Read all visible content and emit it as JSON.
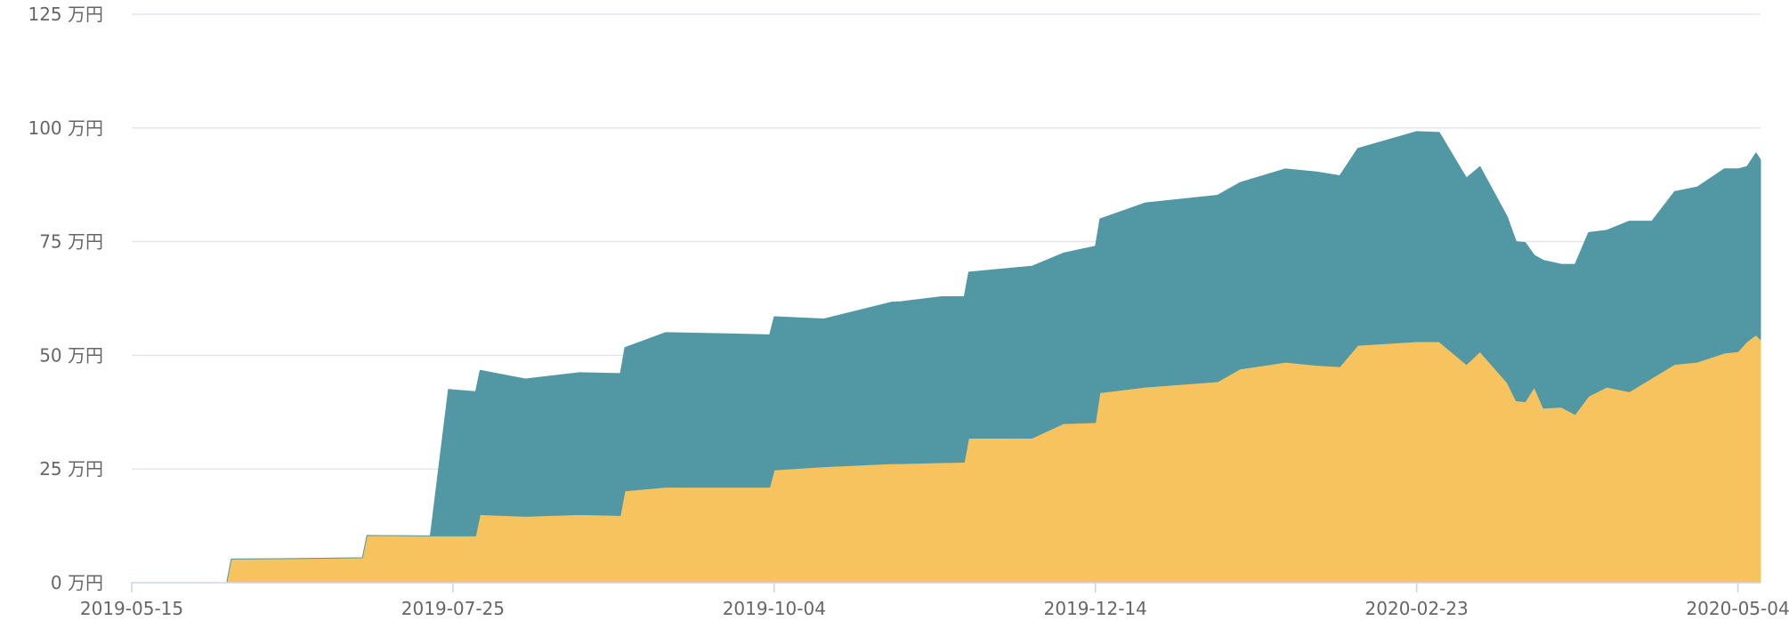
{
  "chart_data": {
    "type": "area",
    "stacked": true,
    "grid": true,
    "legend": "none",
    "xlim": [
      "2019-05-15",
      "2020-05-09"
    ],
    "ylim": [
      0,
      125
    ],
    "y_unit": "万円",
    "y_ticks": [
      {
        "value": 0,
        "label": "0 万円"
      },
      {
        "value": 25,
        "label": "25 万円"
      },
      {
        "value": 50,
        "label": "50 万円"
      },
      {
        "value": 75,
        "label": "75 万円"
      },
      {
        "value": 100,
        "label": "100 万円"
      },
      {
        "value": 125,
        "label": "125 万円"
      }
    ],
    "x_ticks": [
      {
        "value": "2019-05-15",
        "label": "2019-05-15"
      },
      {
        "value": "2019-07-25",
        "label": "2019-07-25"
      },
      {
        "value": "2019-10-04",
        "label": "2019-10-04"
      },
      {
        "value": "2019-12-14",
        "label": "2019-12-14"
      },
      {
        "value": "2020-02-23",
        "label": "2020-02-23"
      },
      {
        "value": "2020-05-04",
        "label": "2020-05-04"
      }
    ],
    "series": [
      {
        "color": "#f6c35f",
        "points": [
          [
            "2019-05-15",
            0
          ],
          [
            "2019-06-05",
            0
          ],
          [
            "2019-06-06",
            5.2
          ],
          [
            "2019-06-20",
            5.3
          ],
          [
            "2019-07-05",
            5.5
          ],
          [
            "2019-07-06",
            10.4
          ],
          [
            "2019-07-20",
            10.3
          ],
          [
            "2019-07-24",
            10.3
          ],
          [
            "2019-07-30",
            10.3
          ],
          [
            "2019-07-31",
            15.0
          ],
          [
            "2019-08-10",
            14.6
          ],
          [
            "2019-08-22",
            15.0
          ],
          [
            "2019-08-31",
            14.8
          ],
          [
            "2019-09-01",
            20.2
          ],
          [
            "2019-09-10",
            21.0
          ],
          [
            "2019-09-25",
            21.0
          ],
          [
            "2019-10-03",
            21.0
          ],
          [
            "2019-10-04",
            24.8
          ],
          [
            "2019-10-15",
            25.5
          ],
          [
            "2019-10-30",
            26.2
          ],
          [
            "2019-11-01",
            26.2
          ],
          [
            "2019-11-10",
            26.4
          ],
          [
            "2019-11-15",
            26.5
          ],
          [
            "2019-11-16",
            31.8
          ],
          [
            "2019-11-30",
            31.8
          ],
          [
            "2019-12-07",
            35.0
          ],
          [
            "2019-12-14",
            35.2
          ],
          [
            "2019-12-15",
            41.8
          ],
          [
            "2019-12-25",
            43.0
          ],
          [
            "2020-01-10",
            44.2
          ],
          [
            "2020-01-15",
            47.0
          ],
          [
            "2020-01-25",
            48.5
          ],
          [
            "2020-02-01",
            47.8
          ],
          [
            "2020-02-06",
            47.5
          ],
          [
            "2020-02-10",
            52.2
          ],
          [
            "2020-02-23",
            53.0
          ],
          [
            "2020-02-28",
            53.0
          ],
          [
            "2020-03-05",
            48.0
          ],
          [
            "2020-03-08",
            50.8
          ],
          [
            "2020-03-14",
            44.0
          ],
          [
            "2020-03-16",
            40.0
          ],
          [
            "2020-03-18",
            39.8
          ],
          [
            "2020-03-20",
            43.0
          ],
          [
            "2020-03-22",
            38.4
          ],
          [
            "2020-03-26",
            38.6
          ],
          [
            "2020-03-29",
            37.0
          ],
          [
            "2020-04-01",
            41.0
          ],
          [
            "2020-04-05",
            43.0
          ],
          [
            "2020-04-10",
            42.0
          ],
          [
            "2020-04-15",
            45.0
          ],
          [
            "2020-04-20",
            48.0
          ],
          [
            "2020-04-25",
            48.5
          ],
          [
            "2020-05-01",
            50.5
          ],
          [
            "2020-05-04",
            50.8
          ],
          [
            "2020-05-06",
            53.0
          ],
          [
            "2020-05-08",
            54.5
          ],
          [
            "2020-05-09",
            53.5
          ]
        ]
      },
      {
        "color": "#5198a4",
        "points": [
          [
            "2019-05-15",
            0
          ],
          [
            "2019-06-05",
            0
          ],
          [
            "2019-06-06",
            0
          ],
          [
            "2019-06-20",
            0
          ],
          [
            "2019-07-05",
            0
          ],
          [
            "2019-07-06",
            0
          ],
          [
            "2019-07-20",
            0
          ],
          [
            "2019-07-24",
            32.2
          ],
          [
            "2019-07-30",
            31.7
          ],
          [
            "2019-07-31",
            31.7
          ],
          [
            "2019-08-10",
            30.2
          ],
          [
            "2019-08-22",
            31.2
          ],
          [
            "2019-08-31",
            31.2
          ],
          [
            "2019-09-01",
            31.5
          ],
          [
            "2019-09-10",
            34.0
          ],
          [
            "2019-09-25",
            33.7
          ],
          [
            "2019-10-03",
            33.5
          ],
          [
            "2019-10-04",
            33.7
          ],
          [
            "2019-10-15",
            32.5
          ],
          [
            "2019-10-30",
            35.5
          ],
          [
            "2019-11-01",
            35.6
          ],
          [
            "2019-11-10",
            36.5
          ],
          [
            "2019-11-15",
            36.4
          ],
          [
            "2019-11-16",
            36.5
          ],
          [
            "2019-11-30",
            37.8
          ],
          [
            "2019-12-07",
            37.5
          ],
          [
            "2019-12-14",
            38.8
          ],
          [
            "2019-12-15",
            38.2
          ],
          [
            "2019-12-25",
            40.5
          ],
          [
            "2020-01-10",
            41.0
          ],
          [
            "2020-01-15",
            41.0
          ],
          [
            "2020-01-25",
            42.5
          ],
          [
            "2020-02-01",
            42.5
          ],
          [
            "2020-02-06",
            42.0
          ],
          [
            "2020-02-10",
            43.3
          ],
          [
            "2020-02-23",
            46.2
          ],
          [
            "2020-02-28",
            46.0
          ],
          [
            "2020-03-05",
            41.0
          ],
          [
            "2020-03-08",
            40.7
          ],
          [
            "2020-03-14",
            36.5
          ],
          [
            "2020-03-16",
            35.0
          ],
          [
            "2020-03-18",
            35.0
          ],
          [
            "2020-03-20",
            29.0
          ],
          [
            "2020-03-22",
            32.5
          ],
          [
            "2020-03-26",
            31.4
          ],
          [
            "2020-03-29",
            33.0
          ],
          [
            "2020-04-01",
            36.0
          ],
          [
            "2020-04-05",
            34.5
          ],
          [
            "2020-04-10",
            37.5
          ],
          [
            "2020-04-15",
            34.5
          ],
          [
            "2020-04-20",
            38.0
          ],
          [
            "2020-04-25",
            38.5
          ],
          [
            "2020-05-01",
            40.5
          ],
          [
            "2020-05-04",
            40.2
          ],
          [
            "2020-05-06",
            38.5
          ],
          [
            "2020-05-08",
            40.0
          ],
          [
            "2020-05-09",
            39.5
          ]
        ]
      }
    ]
  }
}
